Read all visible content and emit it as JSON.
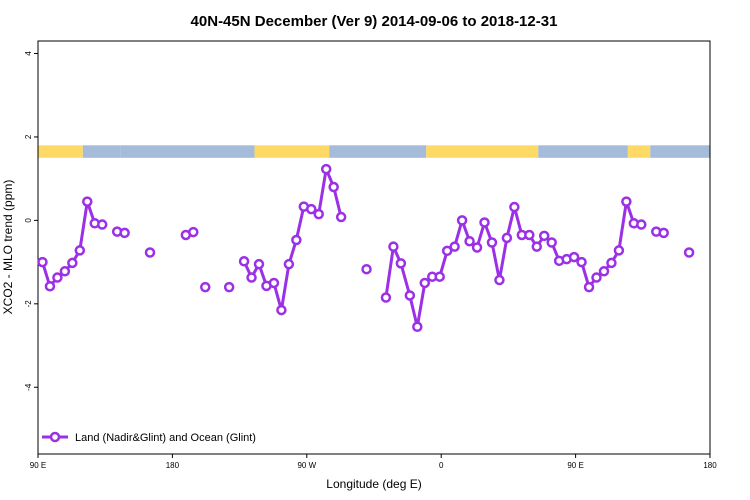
{
  "chart_data": {
    "type": "line",
    "title": "40N-45N December (Ver 9)   2014-09-06 to 2018-12-31",
    "xlabel": "Longitude (deg E)",
    "ylabel": "XCO2 - MLO trend (ppm)",
    "xlim": [
      90,
      540
    ],
    "ylim": [
      -5.6,
      4.3
    ],
    "xticks": [
      {
        "value": 90,
        "label": "90 E"
      },
      {
        "value": 180,
        "label": "180"
      },
      {
        "value": 270,
        "label": "90 W"
      },
      {
        "value": 360,
        "label": "0"
      },
      {
        "value": 450,
        "label": "90 E"
      },
      {
        "value": 540,
        "label": "180"
      }
    ],
    "yticks": [
      {
        "value": -4,
        "label": "-4"
      },
      {
        "value": -2,
        "label": "-2"
      },
      {
        "value": 0,
        "label": "0"
      },
      {
        "value": 2,
        "label": "2"
      },
      {
        "value": 4,
        "label": "4"
      }
    ],
    "grid": false,
    "legend": {
      "position": "bottom-left"
    },
    "colors": {
      "series": "#9b30e6",
      "land": "#ffd966",
      "ocean": "#a4bcda"
    },
    "land_ocean_strip": {
      "y_range": [
        1.5,
        1.8
      ],
      "segments": [
        {
          "from": 90,
          "to": 120,
          "type": "land"
        },
        {
          "from": 120,
          "to": 145,
          "type": "ocean"
        },
        {
          "from": 145,
          "to": 235,
          "type": "ocean"
        },
        {
          "from": 235,
          "to": 285,
          "type": "land"
        },
        {
          "from": 285,
          "to": 350,
          "type": "ocean"
        },
        {
          "from": 350,
          "to": 425,
          "type": "land"
        },
        {
          "from": 425,
          "to": 485,
          "type": "ocean"
        },
        {
          "from": 485,
          "to": 500,
          "type": "land"
        },
        {
          "from": 500,
          "to": 540,
          "type": "ocean"
        }
      ]
    },
    "series": [
      {
        "name": "Land (Nadir&Glint) and Ocean (Glint)",
        "segments": [
          [
            [
              93,
              -1.0
            ],
            [
              98,
              -1.58
            ],
            [
              103,
              -1.37
            ],
            [
              108,
              -1.22
            ],
            [
              113,
              -1.02
            ],
            [
              118,
              -0.72
            ],
            [
              123,
              0.45
            ],
            [
              128,
              -0.07
            ],
            [
              133,
              -0.1
            ]
          ],
          [
            [
              143,
              -0.27
            ],
            [
              148,
              -0.3
            ]
          ],
          [
            [
              165,
              -0.77
            ]
          ],
          [
            [
              189,
              -0.35
            ],
            [
              194,
              -0.28
            ]
          ],
          [
            [
              202,
              -1.6
            ]
          ],
          [
            [
              218,
              -1.6
            ]
          ],
          [
            [
              228,
              -0.98
            ],
            [
              233,
              -1.37
            ],
            [
              238,
              -1.05
            ],
            [
              243,
              -1.57
            ],
            [
              248,
              -1.5
            ],
            [
              253,
              -2.15
            ],
            [
              258,
              -1.05
            ],
            [
              263,
              -0.47
            ],
            [
              268,
              0.33
            ],
            [
              273,
              0.27
            ],
            [
              278,
              0.15
            ],
            [
              283,
              1.23
            ],
            [
              288,
              0.8
            ],
            [
              293,
              0.08
            ]
          ],
          [
            [
              310,
              -1.17
            ]
          ],
          [
            [
              323,
              -1.85
            ],
            [
              328,
              -0.63
            ],
            [
              333,
              -1.03
            ],
            [
              339,
              -1.8
            ],
            [
              344,
              -2.55
            ],
            [
              349,
              -1.5
            ],
            [
              354,
              -1.35
            ],
            [
              359,
              -1.35
            ],
            [
              364,
              -0.73
            ],
            [
              369,
              -0.63
            ],
            [
              374,
              0.0
            ],
            [
              379,
              -0.5
            ],
            [
              384,
              -0.65
            ],
            [
              389,
              -0.05
            ],
            [
              394,
              -0.53
            ],
            [
              399,
              -1.43
            ],
            [
              404,
              -0.42
            ],
            [
              409,
              0.32
            ],
            [
              414,
              -0.35
            ],
            [
              419,
              -0.35
            ],
            [
              424,
              -0.63
            ],
            [
              429,
              -0.37
            ],
            [
              434,
              -0.53
            ],
            [
              439,
              -0.97
            ],
            [
              444,
              -0.93
            ],
            [
              449,
              -0.88
            ],
            [
              454,
              -1.0
            ],
            [
              459,
              -1.6
            ],
            [
              464,
              -1.37
            ],
            [
              469,
              -1.22
            ],
            [
              474,
              -1.02
            ],
            [
              479,
              -0.72
            ],
            [
              484,
              0.45
            ],
            [
              489,
              -0.07
            ],
            [
              494,
              -0.1
            ]
          ],
          [
            [
              504,
              -0.27
            ],
            [
              509,
              -0.3
            ]
          ],
          [
            [
              526,
              -0.77
            ]
          ]
        ]
      }
    ]
  }
}
